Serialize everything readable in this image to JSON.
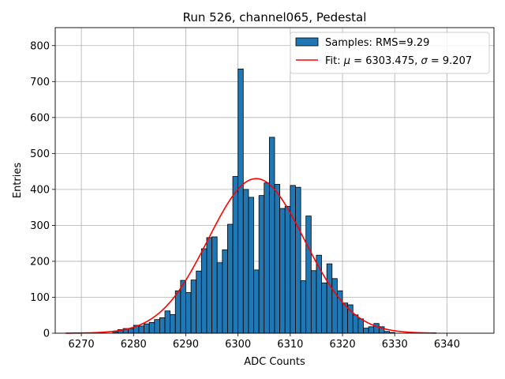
{
  "chart_data": {
    "type": "bar",
    "title": "Run 526, channel065, Pedestal",
    "xlabel": "ADC Counts",
    "ylabel": "Entries",
    "xlim": [
      6265,
      6349
    ],
    "ylim": [
      0,
      850
    ],
    "xticks": [
      6270,
      6280,
      6290,
      6300,
      6310,
      6320,
      6330,
      6340
    ],
    "yticks": [
      0,
      100,
      200,
      300,
      400,
      500,
      600,
      700,
      800
    ],
    "grid": true,
    "legend_position": "top-right",
    "histogram": {
      "name": "Samples: RMS=9.29",
      "color": "#1f77b4",
      "bin_width": 1,
      "bin_starts": [
        6276,
        6277,
        6278,
        6279,
        6280,
        6281,
        6282,
        6283,
        6284,
        6285,
        6286,
        6287,
        6288,
        6289,
        6290,
        6291,
        6292,
        6293,
        6294,
        6295,
        6296,
        6297,
        6298,
        6299,
        6300,
        6301,
        6302,
        6303,
        6304,
        6305,
        6306,
        6307,
        6308,
        6309,
        6310,
        6311,
        6312,
        6313,
        6314,
        6315,
        6316,
        6317,
        6318,
        6319,
        6320,
        6321,
        6322,
        6323,
        6324,
        6325,
        6326,
        6327,
        6328,
        6329
      ],
      "values": [
        4,
        10,
        13,
        13,
        22,
        20,
        26,
        30,
        38,
        43,
        62,
        52,
        118,
        147,
        113,
        148,
        173,
        235,
        266,
        268,
        196,
        232,
        303,
        436,
        735,
        400,
        378,
        176,
        383,
        418,
        545,
        414,
        347,
        353,
        411,
        406,
        146,
        326,
        174,
        217,
        140,
        193,
        152,
        118,
        84,
        79,
        51,
        40,
        14,
        18,
        27,
        18,
        5,
        2
      ]
    },
    "fit": {
      "name": "Fit: μ = 6303.475, σ = 9.207",
      "color": "#ff0000",
      "mu": 6303.475,
      "sigma": 9.207,
      "amplitude": 430,
      "x_range": [
        6267,
        6338
      ]
    }
  },
  "legend": {
    "samples_label": "Samples: RMS=9.29",
    "fit_prefix": "Fit: ",
    "fit_mu_symbol": "μ",
    "fit_mu_value": " = 6303.475, ",
    "fit_sigma_symbol": "σ",
    "fit_sigma_value": " = 9.207"
  }
}
